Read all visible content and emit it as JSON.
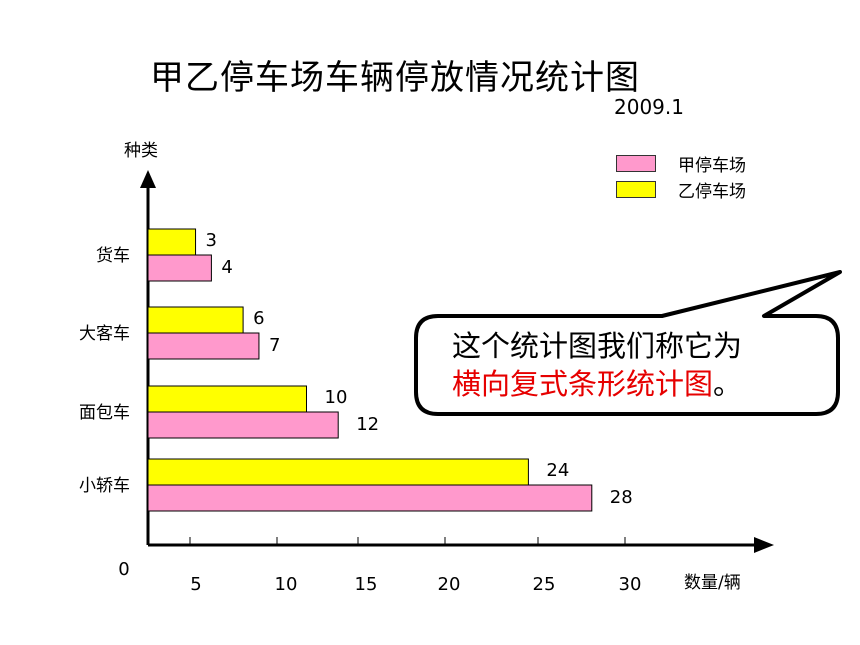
{
  "page": {
    "title": "甲乙停车场车辆停放情况统计图",
    "date": "2009.1"
  },
  "chart_data": {
    "type": "bar",
    "orientation": "horizontal",
    "title": "甲乙停车场车辆停放情况统计图",
    "subtitle": "2009.1",
    "ylabel": "种类",
    "xlabel": "数量/辆",
    "origin_label": "0",
    "categories": [
      "货车",
      "大客车",
      "面包车",
      "小轿车"
    ],
    "x_ticks": [
      5,
      10,
      15,
      20,
      25,
      30
    ],
    "series": [
      {
        "name": "甲停车场",
        "color": "#ff99cc",
        "values": [
          4,
          7,
          12,
          28
        ]
      },
      {
        "name": "乙停车场",
        "color": "#ffff00",
        "values": [
          3,
          6,
          10,
          24
        ]
      }
    ],
    "legend_position": "top-right",
    "grid": false
  },
  "callout": {
    "line1": "这个统计图我们称它为",
    "line2_highlight": "横向复式条形统计图",
    "line2_tail": "。",
    "highlight_color": "#e60000"
  }
}
